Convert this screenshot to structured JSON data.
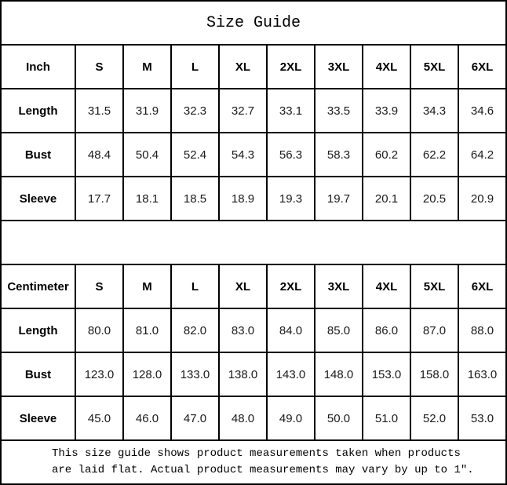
{
  "title": "Size Guide",
  "tables": [
    {
      "unit_label": "Inch",
      "sizes": [
        "S",
        "M",
        "L",
        "XL",
        "2XL",
        "3XL",
        "4XL",
        "5XL",
        "6XL"
      ],
      "rows": [
        {
          "label": "Length",
          "values": [
            "31.5",
            "31.9",
            "32.3",
            "32.7",
            "33.1",
            "33.5",
            "33.9",
            "34.3",
            "34.6"
          ]
        },
        {
          "label": "Bust",
          "values": [
            "48.4",
            "50.4",
            "52.4",
            "54.3",
            "56.3",
            "58.3",
            "60.2",
            "62.2",
            "64.2"
          ]
        },
        {
          "label": "Sleeve",
          "values": [
            "17.7",
            "18.1",
            "18.5",
            "18.9",
            "19.3",
            "19.7",
            "20.1",
            "20.5",
            "20.9"
          ]
        }
      ]
    },
    {
      "unit_label": "Centimeter",
      "sizes": [
        "S",
        "M",
        "L",
        "XL",
        "2XL",
        "3XL",
        "4XL",
        "5XL",
        "6XL"
      ],
      "rows": [
        {
          "label": "Length",
          "values": [
            "80.0",
            "81.0",
            "82.0",
            "83.0",
            "84.0",
            "85.0",
            "86.0",
            "87.0",
            "88.0"
          ]
        },
        {
          "label": "Bust",
          "values": [
            "123.0",
            "128.0",
            "133.0",
            "138.0",
            "143.0",
            "148.0",
            "153.0",
            "158.0",
            "163.0"
          ]
        },
        {
          "label": "Sleeve",
          "values": [
            "45.0",
            "46.0",
            "47.0",
            "48.0",
            "49.0",
            "50.0",
            "51.0",
            "52.0",
            "53.0"
          ]
        }
      ]
    }
  ],
  "footer": {
    "line1": "This size guide shows product measurements taken when products",
    "line2": "are laid flat. Actual product measurements may vary by up to 1″."
  },
  "colors": {
    "border": "#000000",
    "text": "#000000",
    "background": "#ffffff"
  }
}
